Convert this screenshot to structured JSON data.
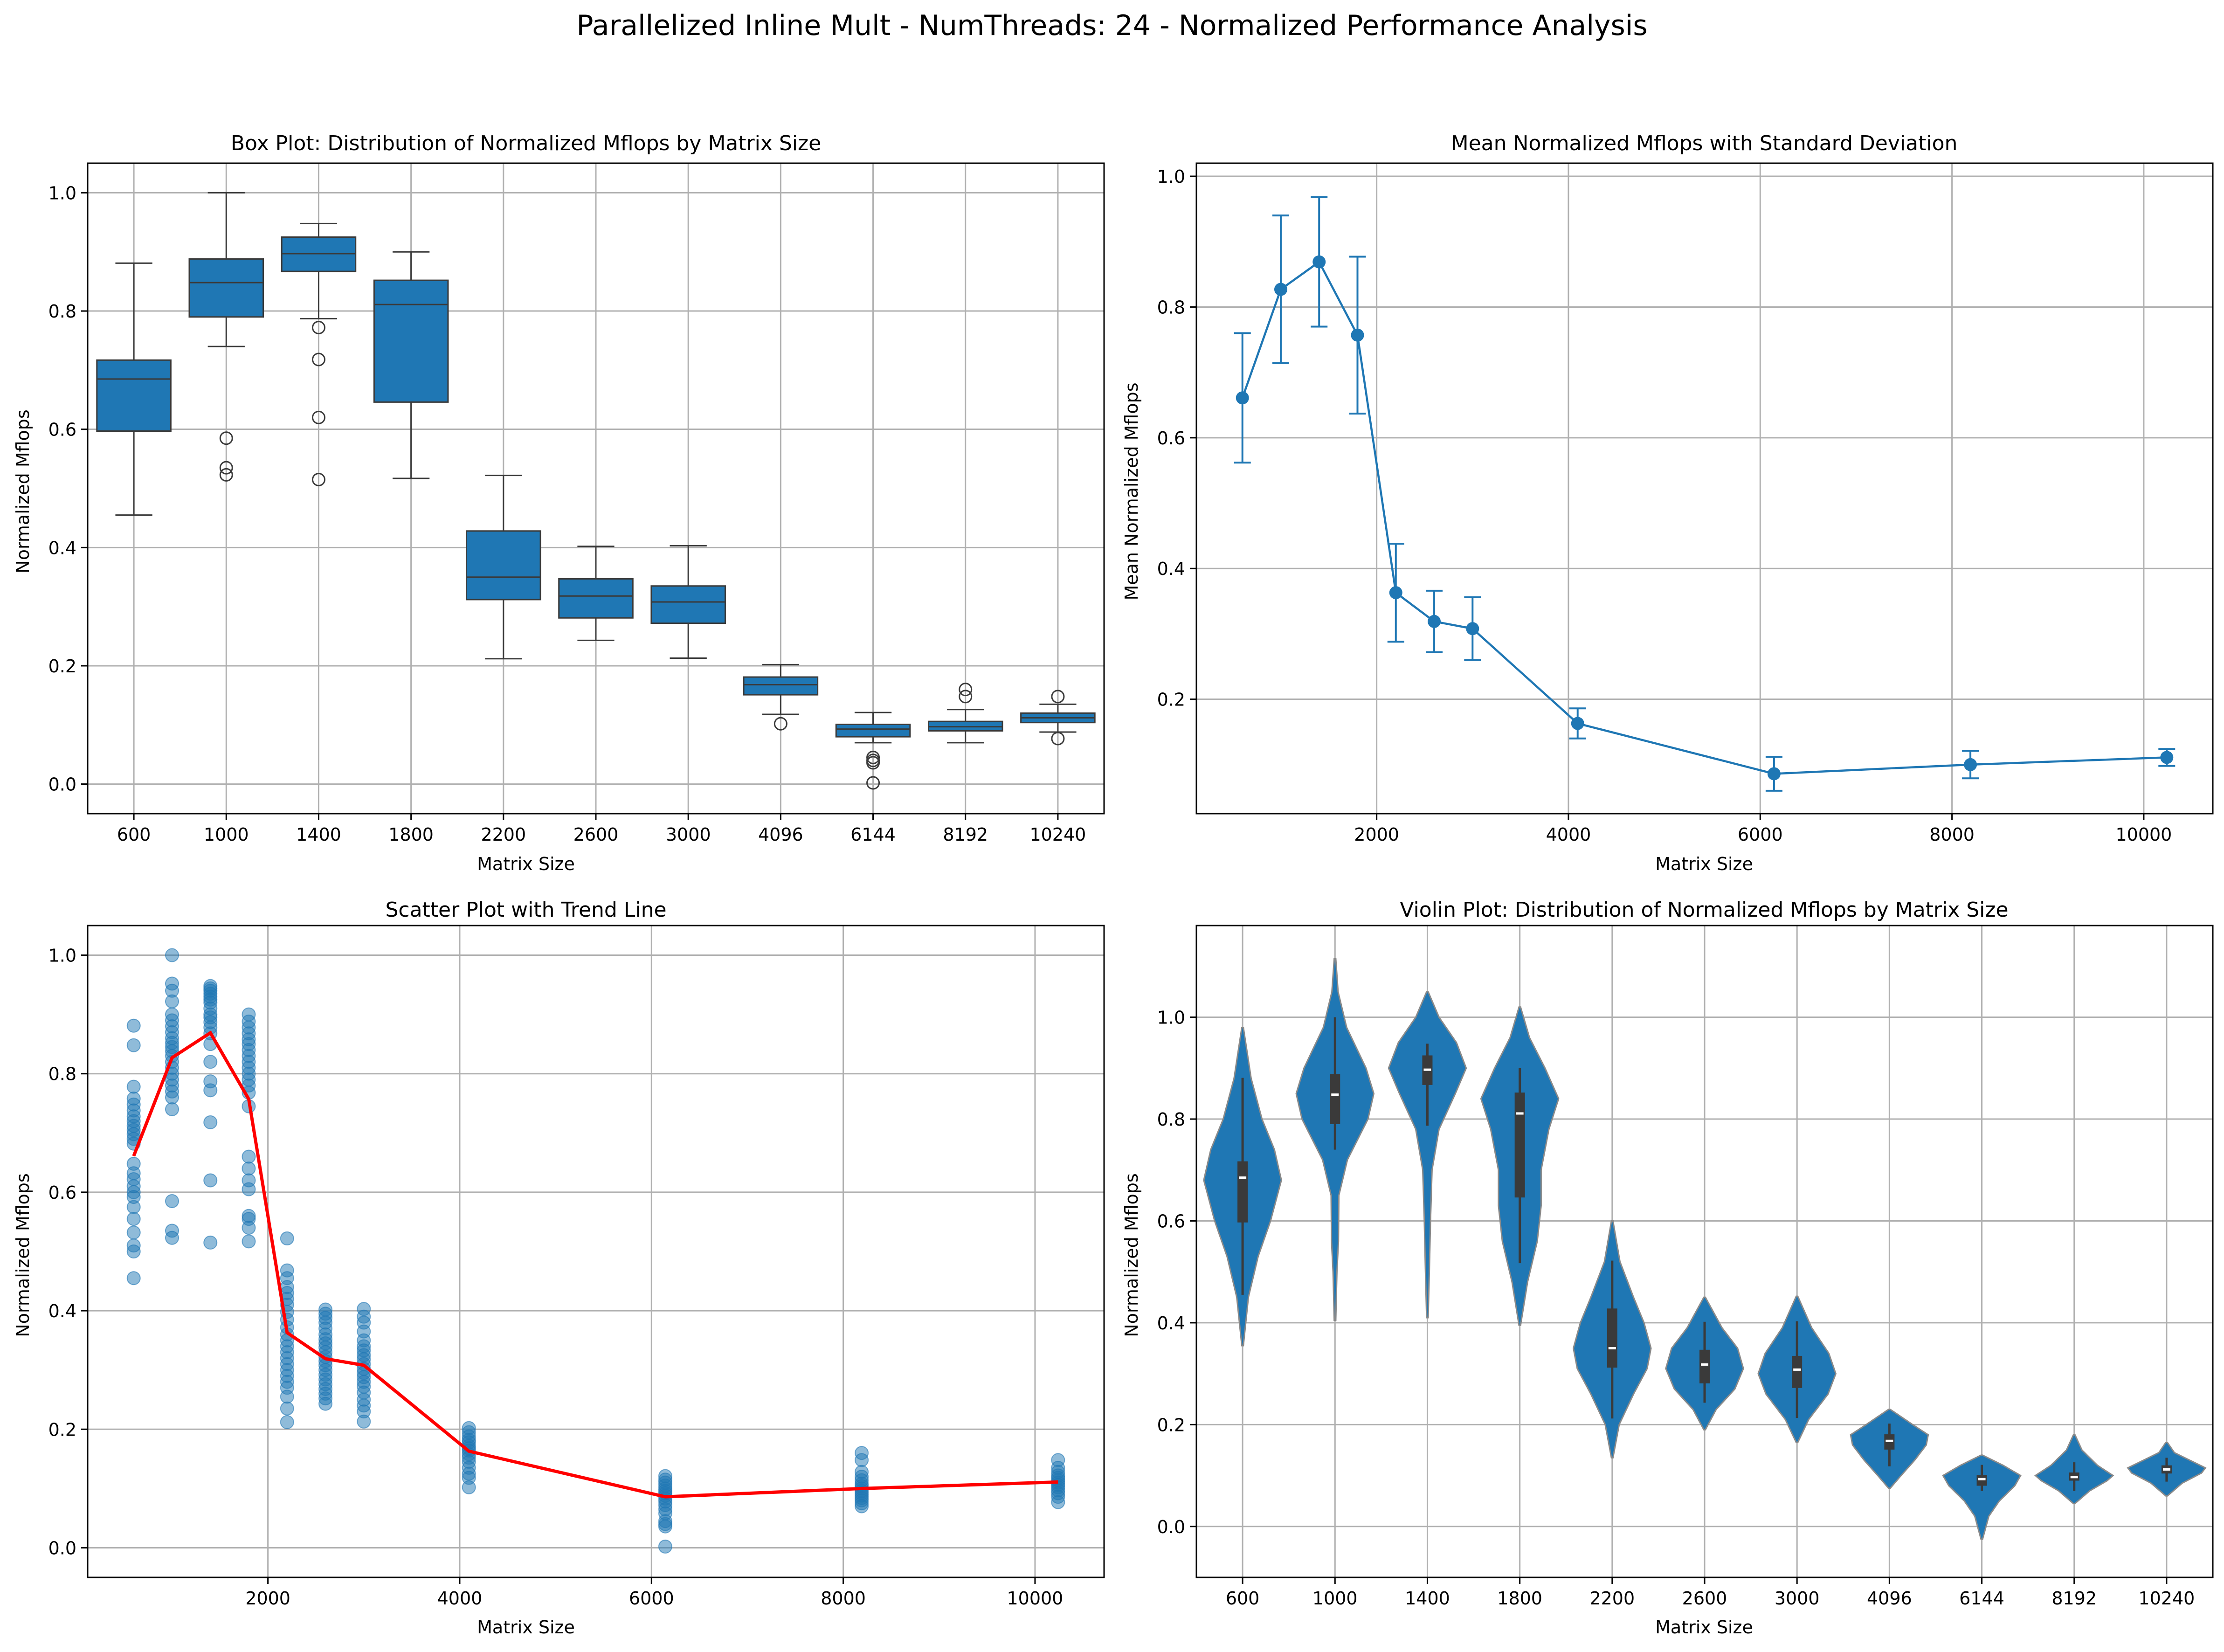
{
  "suptitle": "Parallelized Inline Mult - NumThreads: 24 - Normalized Performance Analysis",
  "colors": {
    "primary": "#1f77b4",
    "trend": "#ff0000",
    "violin_body": "#1f77b4",
    "violin_inner": "#3a3a3a",
    "grid": "#b0b0b0"
  },
  "chart_data": [
    {
      "type": "box",
      "title": "Box Plot: Distribution of Normalized Mflops by Matrix Size",
      "xlabel": "Matrix Size",
      "ylabel": "Normalized Mflops",
      "ylim": [
        -0.05,
        1.05
      ],
      "yticks": [
        0.0,
        0.2,
        0.4,
        0.6,
        0.8,
        1.0
      ],
      "ytick_labels": [
        "0.0",
        "0.2",
        "0.4",
        "0.6",
        "0.8",
        "1.0"
      ],
      "grid": true,
      "categories": [
        "600",
        "1000",
        "1400",
        "1800",
        "2200",
        "2600",
        "3000",
        "4096",
        "6144",
        "8192",
        "10240"
      ],
      "boxes": [
        {
          "whislo": 0.455,
          "q1": 0.597,
          "med": 0.685,
          "q3": 0.717,
          "whishi": 0.881,
          "fliers": []
        },
        {
          "whislo": 0.74,
          "q1": 0.79,
          "med": 0.848,
          "q3": 0.888,
          "whishi": 1.0,
          "fliers": [
            0.585,
            0.535,
            0.523
          ]
        },
        {
          "whislo": 0.787,
          "q1": 0.867,
          "med": 0.897,
          "q3": 0.925,
          "whishi": 0.948,
          "fliers": [
            0.772,
            0.718,
            0.62,
            0.515
          ]
        },
        {
          "whislo": 0.517,
          "q1": 0.646,
          "med": 0.811,
          "q3": 0.852,
          "whishi": 0.9,
          "fliers": []
        },
        {
          "whislo": 0.212,
          "q1": 0.312,
          "med": 0.35,
          "q3": 0.428,
          "whishi": 0.522,
          "fliers": []
        },
        {
          "whislo": 0.243,
          "q1": 0.281,
          "med": 0.318,
          "q3": 0.347,
          "whishi": 0.402,
          "fliers": []
        },
        {
          "whislo": 0.213,
          "q1": 0.272,
          "med": 0.308,
          "q3": 0.335,
          "whishi": 0.403,
          "fliers": []
        },
        {
          "whislo": 0.118,
          "q1": 0.151,
          "med": 0.168,
          "q3": 0.181,
          "whishi": 0.202,
          "fliers": [
            0.102
          ]
        },
        {
          "whislo": 0.07,
          "q1": 0.08,
          "med": 0.093,
          "q3": 0.101,
          "whishi": 0.121,
          "fliers": [
            0.045,
            0.04,
            0.036,
            0.002
          ]
        },
        {
          "whislo": 0.07,
          "q1": 0.09,
          "med": 0.097,
          "q3": 0.106,
          "whishi": 0.126,
          "fliers": [
            0.16,
            0.148
          ]
        },
        {
          "whislo": 0.088,
          "q1": 0.104,
          "med": 0.112,
          "q3": 0.12,
          "whishi": 0.135,
          "fliers": [
            0.148,
            0.077
          ]
        }
      ]
    },
    {
      "type": "line",
      "title": "Mean Normalized Mflops with Standard Deviation",
      "xlabel": "Matrix Size",
      "ylabel": "Mean Normalized Mflops",
      "xlim": [
        120,
        10720
      ],
      "ylim": [
        0.025,
        1.02
      ],
      "xticks": [
        2000,
        4000,
        6000,
        8000,
        10000
      ],
      "xtick_labels": [
        "2000",
        "4000",
        "6000",
        "8000",
        "10000"
      ],
      "yticks": [
        0.2,
        0.4,
        0.6,
        0.8,
        1.0
      ],
      "ytick_labels": [
        "0.2",
        "0.4",
        "0.6",
        "0.8",
        "1.0"
      ],
      "grid": true,
      "x": [
        600,
        1000,
        1400,
        1800,
        2200,
        2600,
        3000,
        4096,
        6144,
        8192,
        10240
      ],
      "y": [
        0.661,
        0.827,
        0.869,
        0.757,
        0.363,
        0.319,
        0.308,
        0.163,
        0.086,
        0.1,
        0.111
      ],
      "yerr": [
        0.099,
        0.113,
        0.099,
        0.12,
        0.075,
        0.047,
        0.048,
        0.023,
        0.026,
        0.021,
        0.013
      ]
    },
    {
      "type": "scatter",
      "title": "Scatter Plot with Trend Line",
      "xlabel": "Matrix Size",
      "ylabel": "Normalized Mflops",
      "xlim": [
        120,
        10720
      ],
      "ylim": [
        -0.05,
        1.05
      ],
      "xticks": [
        2000,
        4000,
        6000,
        8000,
        10000
      ],
      "xtick_labels": [
        "2000",
        "4000",
        "6000",
        "8000",
        "10000"
      ],
      "yticks": [
        0.0,
        0.2,
        0.4,
        0.6,
        0.8,
        1.0
      ],
      "ytick_labels": [
        "0.0",
        "0.2",
        "0.4",
        "0.6",
        "0.8",
        "1.0"
      ],
      "grid": true,
      "points": [
        {
          "x": 600,
          "y": [
            0.881,
            0.848,
            0.778,
            0.758,
            0.748,
            0.738,
            0.728,
            0.72,
            0.712,
            0.705,
            0.698,
            0.69,
            0.682,
            0.648,
            0.632,
            0.622,
            0.61,
            0.6,
            0.592,
            0.575,
            0.555,
            0.532,
            0.51,
            0.5,
            0.455
          ]
        },
        {
          "x": 1000,
          "y": [
            1.0,
            0.952,
            0.94,
            0.922,
            0.9,
            0.89,
            0.88,
            0.87,
            0.86,
            0.852,
            0.845,
            0.838,
            0.83,
            0.82,
            0.81,
            0.8,
            0.79,
            0.78,
            0.77,
            0.76,
            0.74,
            0.585,
            0.535,
            0.523
          ]
        },
        {
          "x": 1400,
          "y": [
            0.948,
            0.944,
            0.94,
            0.935,
            0.93,
            0.925,
            0.92,
            0.91,
            0.9,
            0.895,
            0.887,
            0.878,
            0.868,
            0.85,
            0.82,
            0.787,
            0.772,
            0.718,
            0.62,
            0.515
          ]
        },
        {
          "x": 1800,
          "y": [
            0.9,
            0.888,
            0.878,
            0.868,
            0.858,
            0.85,
            0.84,
            0.83,
            0.82,
            0.81,
            0.8,
            0.79,
            0.78,
            0.768,
            0.745,
            0.66,
            0.64,
            0.62,
            0.605,
            0.56,
            0.555,
            0.54,
            0.517
          ]
        },
        {
          "x": 2200,
          "y": [
            0.522,
            0.468,
            0.455,
            0.44,
            0.43,
            0.42,
            0.41,
            0.398,
            0.385,
            0.372,
            0.36,
            0.35,
            0.34,
            0.33,
            0.32,
            0.31,
            0.3,
            0.29,
            0.28,
            0.27,
            0.255,
            0.235,
            0.212
          ]
        },
        {
          "x": 2600,
          "y": [
            0.402,
            0.395,
            0.388,
            0.38,
            0.37,
            0.36,
            0.352,
            0.345,
            0.338,
            0.33,
            0.322,
            0.315,
            0.308,
            0.3,
            0.292,
            0.284,
            0.276,
            0.268,
            0.26,
            0.252,
            0.243
          ]
        },
        {
          "x": 3000,
          "y": [
            0.403,
            0.39,
            0.38,
            0.365,
            0.35,
            0.34,
            0.333,
            0.325,
            0.318,
            0.31,
            0.302,
            0.295,
            0.288,
            0.28,
            0.272,
            0.262,
            0.25,
            0.24,
            0.23,
            0.213
          ]
        },
        {
          "x": 4096,
          "y": [
            0.202,
            0.195,
            0.188,
            0.182,
            0.178,
            0.172,
            0.168,
            0.164,
            0.158,
            0.152,
            0.145,
            0.135,
            0.125,
            0.118,
            0.102
          ]
        },
        {
          "x": 6144,
          "y": [
            0.121,
            0.115,
            0.11,
            0.105,
            0.1,
            0.096,
            0.092,
            0.088,
            0.083,
            0.078,
            0.072,
            0.065,
            0.058,
            0.045,
            0.04,
            0.036,
            0.002
          ]
        },
        {
          "x": 8192,
          "y": [
            0.16,
            0.148,
            0.128,
            0.12,
            0.114,
            0.108,
            0.104,
            0.1,
            0.096,
            0.092,
            0.088,
            0.084,
            0.08,
            0.075,
            0.07
          ]
        },
        {
          "x": 10240,
          "y": [
            0.148,
            0.135,
            0.128,
            0.122,
            0.118,
            0.114,
            0.11,
            0.106,
            0.102,
            0.097,
            0.092,
            0.086,
            0.077
          ]
        }
      ],
      "trend": {
        "x": [
          600,
          1000,
          1400,
          1800,
          2200,
          2600,
          3000,
          4096,
          6144,
          8192,
          10240
        ],
        "y": [
          0.661,
          0.827,
          0.869,
          0.757,
          0.363,
          0.319,
          0.308,
          0.163,
          0.086,
          0.1,
          0.111
        ]
      }
    },
    {
      "type": "violin",
      "title": "Violin Plot: Distribution of Normalized Mflops by Matrix Size",
      "xlabel": "Matrix Size",
      "ylabel": "Normalized Mflops",
      "ylim": [
        -0.1,
        1.18
      ],
      "yticks": [
        0.0,
        0.2,
        0.4,
        0.6,
        0.8,
        1.0
      ],
      "ytick_labels": [
        "0.0",
        "0.2",
        "0.4",
        "0.6",
        "0.8",
        "1.0"
      ],
      "grid": true,
      "categories": [
        "600",
        "1000",
        "1400",
        "1800",
        "2200",
        "2600",
        "3000",
        "4096",
        "6144",
        "8192",
        "10240"
      ],
      "violins": [
        {
          "lo": 0.355,
          "hi": 0.98,
          "q1": 0.597,
          "med": 0.685,
          "q3": 0.717,
          "wlo": 0.455,
          "whi": 0.881,
          "dens": [
            [
              0.355,
              0.02
            ],
            [
              0.45,
              0.15
            ],
            [
              0.53,
              0.4
            ],
            [
              0.6,
              0.72
            ],
            [
              0.68,
              1.0
            ],
            [
              0.74,
              0.82
            ],
            [
              0.8,
              0.5
            ],
            [
              0.88,
              0.22
            ],
            [
              0.98,
              0.02
            ]
          ]
        },
        {
          "lo": 0.405,
          "hi": 1.115,
          "q1": 0.79,
          "med": 0.848,
          "q3": 0.888,
          "wlo": 0.74,
          "whi": 1.0,
          "dens": [
            [
              0.405,
              0.02
            ],
            [
              0.5,
              0.05
            ],
            [
              0.56,
              0.09
            ],
            [
              0.65,
              0.1
            ],
            [
              0.72,
              0.32
            ],
            [
              0.8,
              0.85
            ],
            [
              0.85,
              1.0
            ],
            [
              0.9,
              0.8
            ],
            [
              0.98,
              0.3
            ],
            [
              1.05,
              0.08
            ],
            [
              1.115,
              0.02
            ]
          ]
        },
        {
          "lo": 0.41,
          "hi": 1.05,
          "q1": 0.867,
          "med": 0.897,
          "q3": 0.925,
          "wlo": 0.787,
          "whi": 0.948,
          "dens": [
            [
              0.41,
              0.02
            ],
            [
              0.5,
              0.05
            ],
            [
              0.6,
              0.08
            ],
            [
              0.7,
              0.12
            ],
            [
              0.78,
              0.3
            ],
            [
              0.85,
              0.72
            ],
            [
              0.9,
              1.0
            ],
            [
              0.95,
              0.75
            ],
            [
              1.0,
              0.3
            ],
            [
              1.05,
              0.02
            ]
          ]
        },
        {
          "lo": 0.395,
          "hi": 1.02,
          "q1": 0.646,
          "med": 0.811,
          "q3": 0.852,
          "wlo": 0.517,
          "whi": 0.9,
          "dens": [
            [
              0.395,
              0.02
            ],
            [
              0.48,
              0.2
            ],
            [
              0.56,
              0.45
            ],
            [
              0.63,
              0.55
            ],
            [
              0.7,
              0.55
            ],
            [
              0.78,
              0.75
            ],
            [
              0.84,
              1.0
            ],
            [
              0.9,
              0.65
            ],
            [
              0.96,
              0.25
            ],
            [
              1.02,
              0.02
            ]
          ]
        },
        {
          "lo": 0.135,
          "hi": 0.6,
          "q1": 0.312,
          "med": 0.35,
          "q3": 0.428,
          "wlo": 0.212,
          "whi": 0.522,
          "dens": [
            [
              0.135,
              0.02
            ],
            [
              0.2,
              0.18
            ],
            [
              0.26,
              0.55
            ],
            [
              0.31,
              0.9
            ],
            [
              0.35,
              1.0
            ],
            [
              0.4,
              0.82
            ],
            [
              0.45,
              0.55
            ],
            [
              0.52,
              0.2
            ],
            [
              0.6,
              0.02
            ]
          ]
        },
        {
          "lo": 0.19,
          "hi": 0.45,
          "q1": 0.281,
          "med": 0.318,
          "q3": 0.347,
          "wlo": 0.243,
          "whi": 0.402,
          "dens": [
            [
              0.19,
              0.02
            ],
            [
              0.23,
              0.3
            ],
            [
              0.27,
              0.78
            ],
            [
              0.31,
              1.0
            ],
            [
              0.35,
              0.85
            ],
            [
              0.39,
              0.45
            ],
            [
              0.45,
              0.02
            ]
          ]
        },
        {
          "lo": 0.165,
          "hi": 0.452,
          "q1": 0.272,
          "med": 0.308,
          "q3": 0.335,
          "wlo": 0.213,
          "whi": 0.403,
          "dens": [
            [
              0.165,
              0.02
            ],
            [
              0.21,
              0.3
            ],
            [
              0.26,
              0.8
            ],
            [
              0.3,
              1.0
            ],
            [
              0.34,
              0.82
            ],
            [
              0.39,
              0.38
            ],
            [
              0.452,
              0.02
            ]
          ]
        },
        {
          "lo": 0.075,
          "hi": 0.23,
          "q1": 0.151,
          "med": 0.168,
          "q3": 0.181,
          "wlo": 0.118,
          "whi": 0.202,
          "dens": [
            [
              0.075,
              0.02
            ],
            [
              0.1,
              0.3
            ],
            [
              0.13,
              0.65
            ],
            [
              0.16,
              0.95
            ],
            [
              0.18,
              1.0
            ],
            [
              0.2,
              0.6
            ],
            [
              0.23,
              0.02
            ]
          ]
        },
        {
          "lo": -0.025,
          "hi": 0.14,
          "q1": 0.08,
          "med": 0.093,
          "q3": 0.101,
          "wlo": 0.07,
          "whi": 0.121,
          "dens": [
            [
              -0.025,
              0.02
            ],
            [
              0.02,
              0.18
            ],
            [
              0.05,
              0.45
            ],
            [
              0.08,
              0.85
            ],
            [
              0.1,
              1.0
            ],
            [
              0.12,
              0.55
            ],
            [
              0.14,
              0.02
            ]
          ]
        },
        {
          "lo": 0.045,
          "hi": 0.18,
          "q1": 0.09,
          "med": 0.097,
          "q3": 0.106,
          "wlo": 0.07,
          "whi": 0.126,
          "dens": [
            [
              0.045,
              0.02
            ],
            [
              0.07,
              0.4
            ],
            [
              0.09,
              0.85
            ],
            [
              0.1,
              1.0
            ],
            [
              0.12,
              0.6
            ],
            [
              0.15,
              0.2
            ],
            [
              0.18,
              0.02
            ]
          ]
        },
        {
          "lo": 0.06,
          "hi": 0.165,
          "q1": 0.104,
          "med": 0.112,
          "q3": 0.12,
          "wlo": 0.088,
          "whi": 0.135,
          "dens": [
            [
              0.06,
              0.02
            ],
            [
              0.085,
              0.4
            ],
            [
              0.105,
              0.9
            ],
            [
              0.115,
              1.0
            ],
            [
              0.13,
              0.6
            ],
            [
              0.145,
              0.2
            ],
            [
              0.165,
              0.02
            ]
          ]
        }
      ]
    }
  ]
}
